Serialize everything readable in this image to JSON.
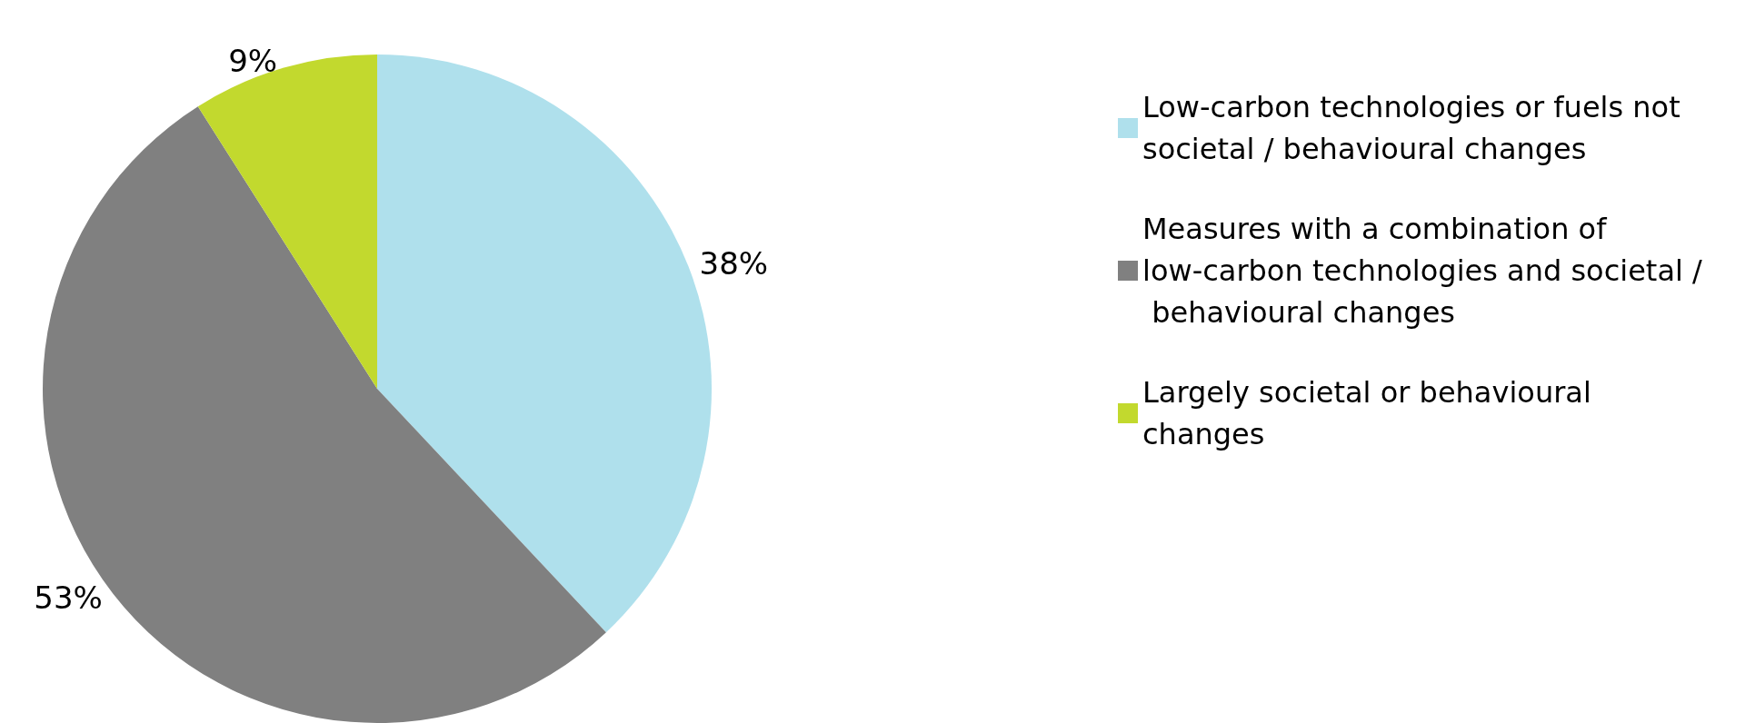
{
  "chart_data": {
    "type": "pie",
    "categories": [
      "Low-carbon technologies or fuels not societal / behavioural changes",
      "Measures with a combination of low-carbon technologies and societal / behavioural changes",
      "Largely societal or behavioural changes"
    ],
    "values": [
      38,
      53,
      9
    ],
    "colors": [
      "#afe0ec",
      "#808080",
      "#c2d92e"
    ],
    "value_labels": [
      "38%",
      "53%",
      "9%"
    ],
    "legend": "right"
  }
}
